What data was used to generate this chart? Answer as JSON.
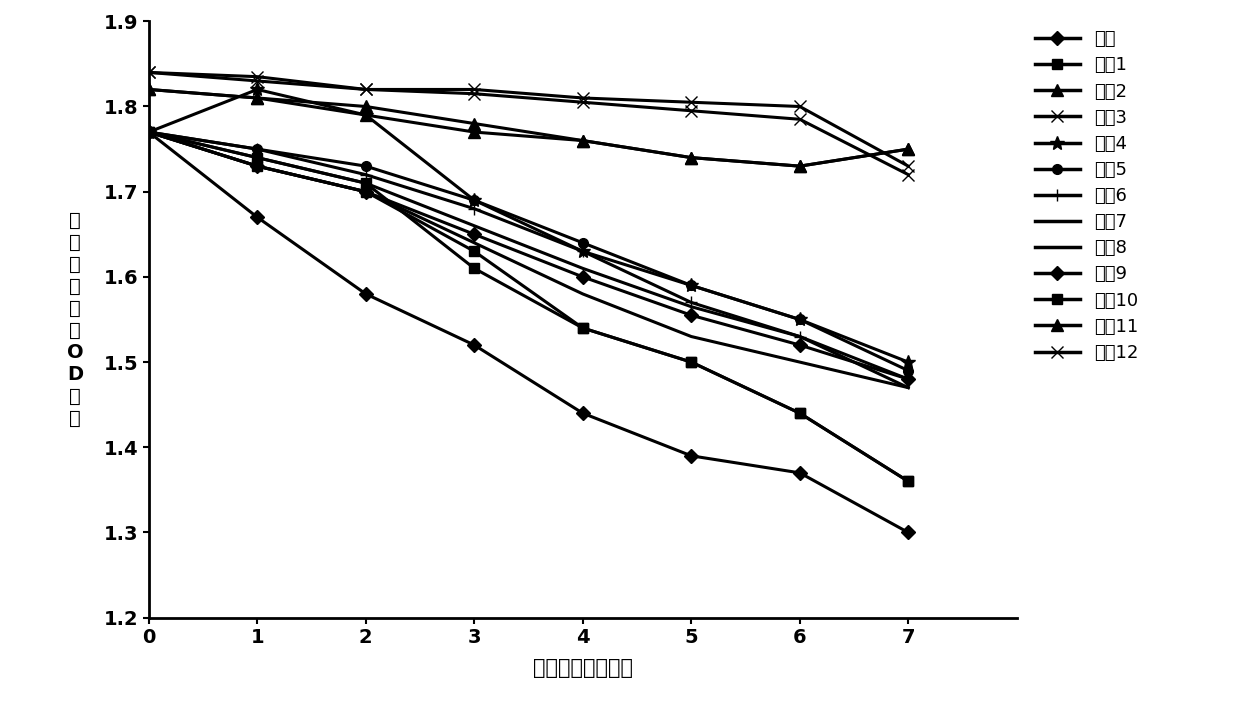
{
  "x": [
    0,
    1,
    2,
    3,
    4,
    5,
    6,
    7
  ],
  "series": [
    {
      "name": "对照",
      "y": [
        1.77,
        1.67,
        1.58,
        1.52,
        1.44,
        1.39,
        1.37,
        1.3
      ],
      "marker": "D",
      "ms": 7
    },
    {
      "name": "实例1",
      "y": [
        1.77,
        1.74,
        1.71,
        1.61,
        1.54,
        1.5,
        1.44,
        1.36
      ],
      "marker": "s",
      "ms": 7
    },
    {
      "name": "实例2",
      "y": [
        1.82,
        1.81,
        1.8,
        1.78,
        1.76,
        1.74,
        1.73,
        1.75
      ],
      "marker": "^",
      "ms": 8
    },
    {
      "name": "实例3",
      "y": [
        1.84,
        1.835,
        1.82,
        1.82,
        1.81,
        1.805,
        1.8,
        1.73
      ],
      "marker": "x",
      "ms": 9
    },
    {
      "name": "实例4",
      "y": [
        1.77,
        1.82,
        1.79,
        1.69,
        1.63,
        1.59,
        1.55,
        1.5
      ],
      "marker": "*",
      "ms": 10
    },
    {
      "name": "实例5",
      "y": [
        1.77,
        1.75,
        1.73,
        1.69,
        1.64,
        1.59,
        1.55,
        1.49
      ],
      "marker": "o",
      "ms": 7
    },
    {
      "name": "实例6",
      "y": [
        1.77,
        1.75,
        1.72,
        1.68,
        1.63,
        1.57,
        1.53,
        1.48
      ],
      "marker": "+",
      "ms": 9
    },
    {
      "name": "实例7",
      "y": [
        1.77,
        1.74,
        1.71,
        1.66,
        1.61,
        1.565,
        1.53,
        1.47
      ],
      "marker": null,
      "ms": 0
    },
    {
      "name": "实例8",
      "y": [
        1.77,
        1.73,
        1.7,
        1.64,
        1.58,
        1.53,
        1.5,
        1.47
      ],
      "marker": null,
      "ms": 0
    },
    {
      "name": "实例9",
      "y": [
        1.77,
        1.73,
        1.7,
        1.65,
        1.6,
        1.555,
        1.52,
        1.48
      ],
      "marker": "D",
      "ms": 7
    },
    {
      "name": "实例10",
      "y": [
        1.77,
        1.73,
        1.7,
        1.63,
        1.54,
        1.5,
        1.44,
        1.36
      ],
      "marker": "s",
      "ms": 7
    },
    {
      "name": "实例11",
      "y": [
        1.82,
        1.81,
        1.79,
        1.77,
        1.76,
        1.74,
        1.73,
        1.75
      ],
      "marker": "^",
      "ms": 8
    },
    {
      "name": "实例12",
      "y": [
        1.84,
        1.83,
        1.82,
        1.815,
        1.805,
        1.795,
        1.785,
        1.72
      ],
      "marker": "x",
      "ms": 9
    }
  ],
  "xlabel": "热加速时间（天）",
  "ylabel_chars": [
    "空",
    "白",
    "吸",
    "光",
    "度",
    "（",
    "O",
    "D",
    "値",
    "）"
  ],
  "xlim": [
    0,
    8
  ],
  "ylim": [
    1.2,
    1.9
  ],
  "yticks": [
    1.2,
    1.3,
    1.4,
    1.5,
    1.6,
    1.7,
    1.8,
    1.9
  ],
  "xticks": [
    0,
    1,
    2,
    3,
    4,
    5,
    6,
    7
  ],
  "line_color": "#000000",
  "background_color": "#ffffff",
  "linewidth": 2.2,
  "tick_fontsize": 14,
  "label_fontsize": 15,
  "legend_fontsize": 13
}
